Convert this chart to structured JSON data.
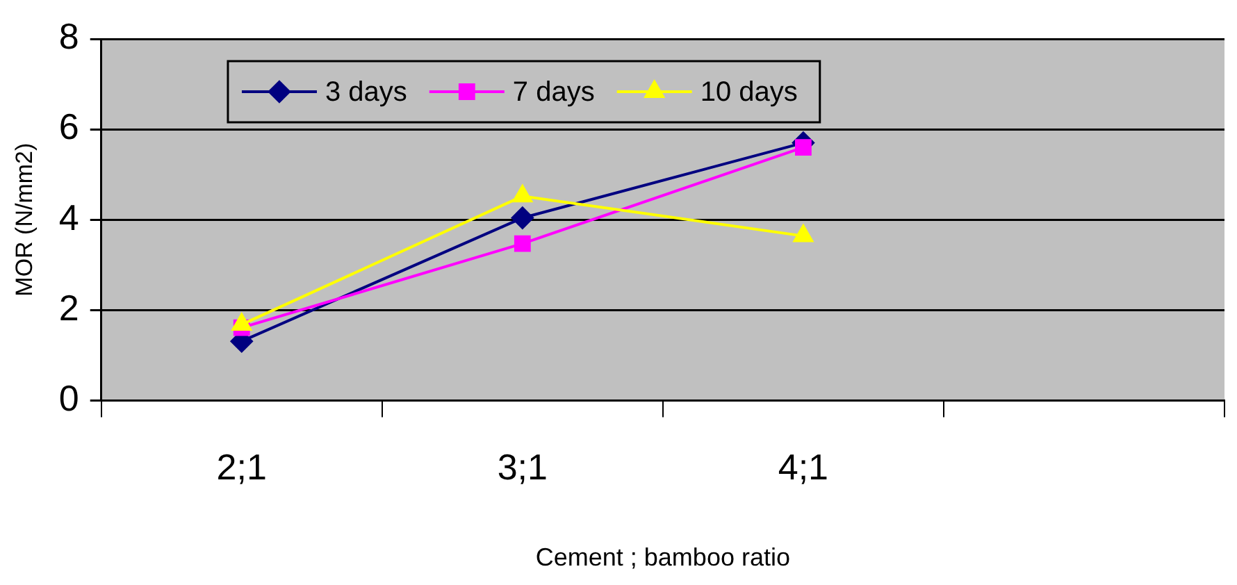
{
  "chart_data": {
    "type": "line",
    "xlabel": "Cement ; bamboo ratio",
    "ylabel": "MOR (N/mm2)",
    "categories": [
      "2;1",
      "3;1",
      "4;1",
      null
    ],
    "ylim": [
      0,
      8
    ],
    "yticks": [
      0,
      2,
      4,
      6,
      8
    ],
    "grid": "y",
    "legend": "top",
    "line_style": "solid",
    "series": [
      {
        "name": "3 days",
        "color": "#000080",
        "marker": "diamond",
        "values": [
          1.31,
          4.04,
          5.7,
          null
        ]
      },
      {
        "name": "7 days",
        "color": "#ff00ff",
        "marker": "square",
        "values": [
          1.61,
          3.47,
          5.6,
          null
        ]
      },
      {
        "name": "10 days",
        "color": "#ffff00",
        "marker": "triangle",
        "values": [
          1.68,
          4.52,
          3.64,
          null
        ]
      }
    ]
  }
}
